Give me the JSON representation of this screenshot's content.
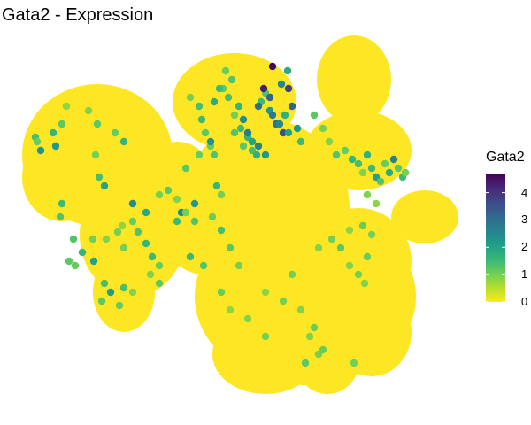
{
  "chart_data": {
    "type": "scatter",
    "title": "Gata2 - Expression",
    "xlabel": "",
    "ylabel": "",
    "grid": false,
    "legend": {
      "title": "Gata2",
      "placement": "right",
      "type": "colorbar",
      "range": [
        0,
        4.7
      ],
      "ticks": [
        0,
        1,
        2,
        3,
        4
      ],
      "tick_labels": [
        "0",
        "1",
        "2",
        "3",
        "4"
      ],
      "palette": [
        "#fde725",
        "#b5de2b",
        "#6ece58",
        "#35b779",
        "#1f9e89",
        "#26828e",
        "#31688e",
        "#3e4989",
        "#482878",
        "#440154"
      ]
    },
    "colors": {
      "background_points": "#fde725",
      "low": "#fde725",
      "high": "#440154"
    },
    "series": [
      {
        "x": [
          40,
          42,
          46,
          60,
          63,
          70,
          75,
          70,
          68,
          100,
          110,
          108,
          112,
          118,
          130,
          140,
          150,
          165,
          105,
          83,
          78,
          85,
          93,
          106,
          118,
          115,
          125,
          135,
          140,
          150,
          133,
          138,
          156,
          165,
          172,
          180,
          170,
          180,
          215,
          225,
          232,
          228,
          238,
          242,
          245,
          250,
          220,
          205,
          200,
          255,
          262,
          252,
          265,
          272,
          280,
          285,
          290,
          300,
          295,
          305,
          312,
          320,
          318,
          325,
          330,
          322,
          336,
          340,
          298,
          305,
          292,
          308,
          316,
          326,
          326,
          308,
          280,
          292,
          300,
          270,
          275,
          285,
          265,
          275,
          258,
          248,
          242,
          238,
          225,
          210,
          355,
          365,
          372,
          380,
          390,
          398,
          405,
          410,
          415,
          420,
          425,
          430,
          435,
          440,
          445,
          450,
          455,
          458,
          415,
          425,
          410,
          420,
          180,
          190,
          200,
          210,
          220,
          240,
          250,
          260,
          270,
          300,
          320,
          340,
          355,
          350,
          360,
          365,
          345,
          300,
          280,
          230,
          215,
          150,
          140,
          120,
          250,
          260,
          330,
          360,
          375,
          385,
          395,
          395,
          405,
          415,
          412,
          400
        ],
        "y": [
          155,
          160,
          170,
          150,
          165,
          140,
          120,
          230,
          245,
          125,
          140,
          175,
          200,
          210,
          150,
          160,
          230,
          240,
          270,
          270,
          295,
          300,
          285,
          295,
          320,
          340,
          330,
          345,
          325,
          330,
          262,
          255,
          262,
          275,
          290,
          300,
          310,
          320,
          110,
          120,
          150,
          135,
          165,
          175,
          210,
          220,
          230,
          240,
          250,
          80,
          90,
          100,
          130,
          145,
          155,
          170,
          175,
          105,
          115,
          125,
          140,
          150,
          95,
          80,
          120,
          130,
          145,
          160,
          100,
          110,
          120,
          130,
          140,
          150,
          100,
          75,
          150,
          165,
          175,
          120,
          135,
          160,
          150,
          165,
          110,
          100,
          115,
          160,
          175,
          190,
          130,
          145,
          160,
          175,
          170,
          180,
          185,
          195,
          175,
          190,
          200,
          205,
          185,
          195,
          180,
          190,
          200,
          195,
          220,
          230,
          255,
          265,
          220,
          215,
          225,
          240,
          250,
          245,
          260,
          280,
          300,
          330,
          340,
          350,
          370,
          380,
          400,
          395,
          410,
          380,
          360,
          300,
          290,
          250,
          280,
          270,
          330,
          350,
          310,
          280,
          270,
          280,
          260,
          300,
          310,
          290,
          320,
          410
        ],
        "expression": [
          1.4,
          1.1,
          2.3,
          1.6,
          2.2,
          1.2,
          0.8,
          1.5,
          1.3,
          0.9,
          1.2,
          1.0,
          1.4,
          2.0,
          1.1,
          1.6,
          2.4,
          1.9,
          1.0,
          1.3,
          1.2,
          1.1,
          1.6,
          2.0,
          1.4,
          1.2,
          2.1,
          1.1,
          1.4,
          0.9,
          1.0,
          0.8,
          1.3,
          1.6,
          1.5,
          1.1,
          0.9,
          1.2,
          1.0,
          1.4,
          1.2,
          1.5,
          1.1,
          1.3,
          1.6,
          1.0,
          2.2,
          2.5,
          1.5,
          1.1,
          1.3,
          1.2,
          1.0,
          1.5,
          1.6,
          1.4,
          1.7,
          1.3,
          1.5,
          2.2,
          3.0,
          3.5,
          2.5,
          1.8,
          3.2,
          1.7,
          2.2,
          1.5,
          4.3,
          3.2,
          3.0,
          2.8,
          2.5,
          2.0,
          3.8,
          4.6,
          2.8,
          2.6,
          2.2,
          1.6,
          2.4,
          2.0,
          1.3,
          1.2,
          1.4,
          1.5,
          1.8,
          2.3,
          1.1,
          1.2,
          1.2,
          1.0,
          0.9,
          1.3,
          1.1,
          1.6,
          1.4,
          0.9,
          1.7,
          1.5,
          2.0,
          1.3,
          1.1,
          1.8,
          2.6,
          1.2,
          1.5,
          1.0,
          0.9,
          0.8,
          1.1,
          1.0,
          1.0,
          1.2,
          0.9,
          1.0,
          1.3,
          1.1,
          1.4,
          1.2,
          1.0,
          0.8,
          1.0,
          0.9,
          1.1,
          0.9,
          1.0,
          1.1,
          1.2,
          1.0,
          0.9,
          1.3,
          1.5,
          1.1,
          1.0,
          0.9,
          1.1,
          0.8,
          1.0,
          0.9,
          1.0,
          1.2,
          0.8,
          0.9,
          1.0,
          1.1,
          0.9,
          1.0
        ]
      }
    ]
  }
}
